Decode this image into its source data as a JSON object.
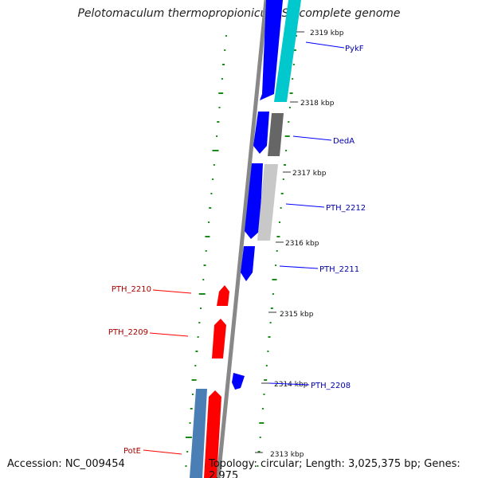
{
  "title": "Pelotomaculum thermopropionicum SI, complete genome",
  "footer": {
    "accession": "Accession: NC_009454",
    "summary": "Topology: circular; Length: 3,025,375 bp; Genes: 2,975"
  },
  "colors": {
    "forward_strand": "#0000ff",
    "reverse_strand": "#ff0000",
    "pykf": "#00c8cc",
    "deda": "#666666",
    "pth_2212": "#c8c8c8",
    "pote": "#4a7fb5",
    "backbone": "#888888",
    "gc_dots": "#1a8a1a",
    "forward_label": "#0000aa",
    "reverse_label": "#aa0000"
  },
  "ticks": [
    "2319 kbp",
    "2318 kbp",
    "2317 kbp",
    "2316 kbp",
    "2315 kbp",
    "2314 kbp",
    "2313 kbp"
  ],
  "genes_right": [
    "PykF",
    "DedA",
    "PTH_2212",
    "PTH_2211",
    "PTH_2208"
  ],
  "genes_left": [
    "PTH_2210",
    "PTH_2209",
    "PotE"
  ]
}
